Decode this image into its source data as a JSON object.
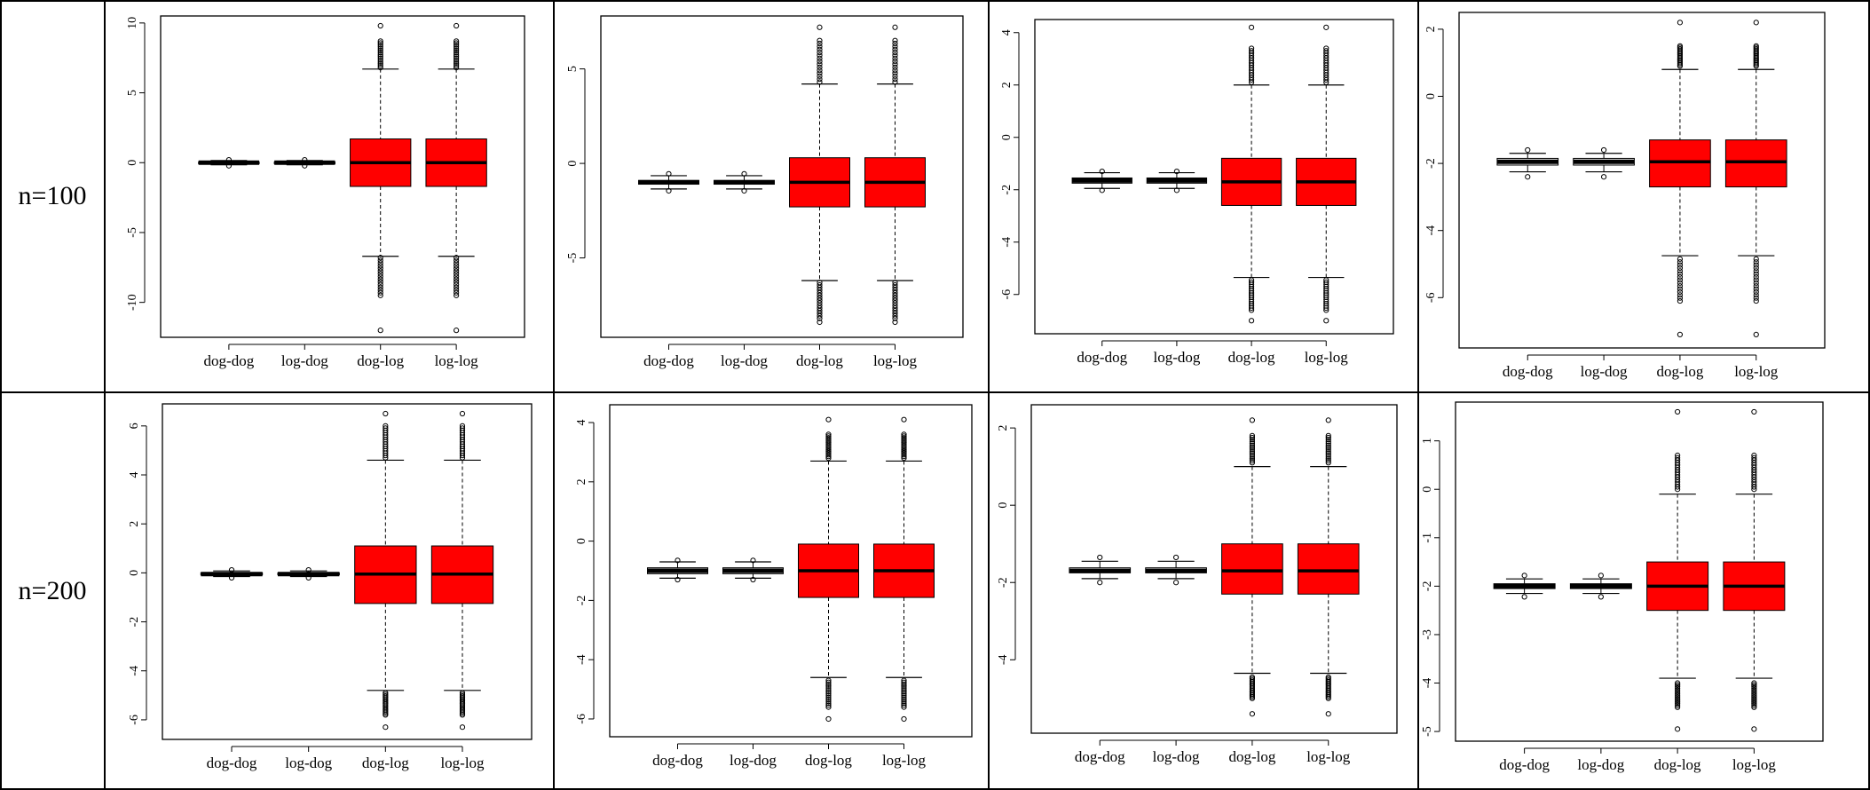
{
  "row_labels": [
    "n=100",
    "n=200"
  ],
  "colors": {
    "box_fill": "#ff0000",
    "frame": "#000000"
  },
  "chart_data": [
    {
      "type": "boxplot",
      "categories": [
        "dog-dog",
        "log-dog",
        "dog-log",
        "log-log"
      ],
      "ylim": [
        -12.5,
        10.5
      ],
      "yticks": [
        -10,
        -5,
        0,
        5,
        10
      ],
      "boxes": [
        {
          "wlo": -0.15,
          "q1": -0.05,
          "med": 0,
          "q3": 0.05,
          "whi": 0.15,
          "out": [
            -0.22,
            0.2
          ]
        },
        {
          "wlo": -0.15,
          "q1": -0.05,
          "med": 0,
          "q3": 0.05,
          "whi": 0.15,
          "out": [
            -0.22,
            0.2
          ]
        },
        {
          "wlo": -6.7,
          "q1": -1.7,
          "med": 0,
          "q3": 1.7,
          "whi": 6.7,
          "outlo": [
            -6.8,
            -9.5
          ],
          "outhi": [
            6.8,
            8.7
          ],
          "out": [
            -12,
            9.8
          ]
        },
        {
          "wlo": -6.7,
          "q1": -1.7,
          "med": 0,
          "q3": 1.7,
          "whi": 6.7,
          "outlo": [
            -6.8,
            -9.5
          ],
          "outhi": [
            6.8,
            8.7
          ],
          "out": [
            -12,
            9.8
          ]
        }
      ]
    },
    {
      "type": "boxplot",
      "categories": [
        "dog-dog",
        "log-dog",
        "dog-log",
        "log-log"
      ],
      "ylim": [
        -9.2,
        7.8
      ],
      "yticks": [
        -5,
        0,
        5
      ],
      "boxes": [
        {
          "wlo": -1.35,
          "q1": -1.1,
          "med": -1,
          "q3": -0.9,
          "whi": -0.65,
          "out": [
            -1.45,
            -0.55
          ]
        },
        {
          "wlo": -1.35,
          "q1": -1.1,
          "med": -1,
          "q3": -0.9,
          "whi": -0.65,
          "out": [
            -1.45,
            -0.55
          ]
        },
        {
          "wlo": -6.2,
          "q1": -2.3,
          "med": -1,
          "q3": 0.3,
          "whi": 4.2,
          "outlo": [
            -6.3,
            -8.2
          ],
          "outhi": [
            4.3,
            6.5
          ],
          "out": [
            -8.4,
            7.2
          ]
        },
        {
          "wlo": -6.2,
          "q1": -2.3,
          "med": -1,
          "q3": 0.3,
          "whi": 4.2,
          "outlo": [
            -6.3,
            -8.2
          ],
          "outhi": [
            4.3,
            6.5
          ],
          "out": [
            -8.4,
            7.2
          ]
        }
      ]
    },
    {
      "type": "boxplot",
      "categories": [
        "dog-dog",
        "log-dog",
        "dog-log",
        "log-log"
      ],
      "ylim": [
        -7.5,
        4.5
      ],
      "yticks": [
        -6,
        -4,
        -2,
        0,
        2,
        4
      ],
      "boxes": [
        {
          "wlo": -1.95,
          "q1": -1.75,
          "med": -1.65,
          "q3": -1.55,
          "whi": -1.35,
          "out": [
            -2.02,
            -1.3
          ]
        },
        {
          "wlo": -1.95,
          "q1": -1.75,
          "med": -1.65,
          "q3": -1.55,
          "whi": -1.35,
          "out": [
            -2.02,
            -1.3
          ]
        },
        {
          "wlo": -5.35,
          "q1": -2.6,
          "med": -1.7,
          "q3": -0.8,
          "whi": 2.0,
          "outlo": [
            -5.45,
            -6.6
          ],
          "outhi": [
            2.1,
            3.4
          ],
          "out": [
            -7.0,
            4.2
          ]
        },
        {
          "wlo": -5.35,
          "q1": -2.6,
          "med": -1.7,
          "q3": -0.8,
          "whi": 2.0,
          "outlo": [
            -5.45,
            -6.6
          ],
          "outhi": [
            2.1,
            3.4
          ],
          "out": [
            -7.0,
            4.2
          ]
        }
      ]
    },
    {
      "type": "boxplot",
      "categories": [
        "dog-dog",
        "log-dog",
        "dog-log",
        "log-log"
      ],
      "ylim": [
        -7.5,
        2.5
      ],
      "yticks": [
        -6,
        -4,
        -2,
        0,
        2
      ],
      "boxes": [
        {
          "wlo": -2.25,
          "q1": -2.05,
          "med": -1.95,
          "q3": -1.85,
          "whi": -1.7,
          "out": [
            -2.4,
            -1.6
          ]
        },
        {
          "wlo": -2.25,
          "q1": -2.05,
          "med": -1.95,
          "q3": -1.85,
          "whi": -1.7,
          "out": [
            -2.4,
            -1.6
          ]
        },
        {
          "wlo": -4.75,
          "q1": -2.7,
          "med": -1.95,
          "q3": -1.3,
          "whi": 0.8,
          "outlo": [
            -4.85,
            -6.1
          ],
          "outhi": [
            0.9,
            1.5
          ],
          "out": [
            -7.1,
            2.2
          ]
        },
        {
          "wlo": -4.75,
          "q1": -2.7,
          "med": -1.95,
          "q3": -1.3,
          "whi": 0.8,
          "outlo": [
            -4.85,
            -6.1
          ],
          "outhi": [
            0.9,
            1.5
          ],
          "out": [
            -7.1,
            2.2
          ]
        }
      ]
    },
    {
      "type": "boxplot",
      "categories": [
        "dog-dog",
        "log-dog",
        "dog-log",
        "log-log"
      ],
      "ylim": [
        -6.8,
        6.9
      ],
      "yticks": [
        -6,
        -4,
        -2,
        0,
        2,
        4,
        6
      ],
      "boxes": [
        {
          "wlo": -0.15,
          "q1": -0.08,
          "med": -0.05,
          "q3": 0,
          "whi": 0.08,
          "out": [
            -0.2,
            0.12
          ]
        },
        {
          "wlo": -0.15,
          "q1": -0.08,
          "med": -0.05,
          "q3": 0,
          "whi": 0.08,
          "out": [
            -0.2,
            0.12
          ]
        },
        {
          "wlo": -4.8,
          "q1": -1.25,
          "med": -0.05,
          "q3": 1.1,
          "whi": 4.6,
          "outlo": [
            -4.9,
            -5.8
          ],
          "outhi": [
            4.7,
            6.0
          ],
          "out": [
            -6.3,
            6.5
          ]
        },
        {
          "wlo": -4.8,
          "q1": -1.25,
          "med": -0.05,
          "q3": 1.1,
          "whi": 4.6,
          "outlo": [
            -4.9,
            -5.8
          ],
          "outhi": [
            4.7,
            6.0
          ],
          "out": [
            -6.3,
            6.5
          ]
        }
      ]
    },
    {
      "type": "boxplot",
      "categories": [
        "dog-dog",
        "log-dog",
        "dog-log",
        "log-log"
      ],
      "ylim": [
        -6.6,
        4.6
      ],
      "yticks": [
        -6,
        -4,
        -2,
        0,
        2,
        4
      ],
      "boxes": [
        {
          "wlo": -1.25,
          "q1": -1.1,
          "med": -1,
          "q3": -0.9,
          "whi": -0.7,
          "out": [
            -1.3,
            -0.65
          ]
        },
        {
          "wlo": -1.25,
          "q1": -1.1,
          "med": -1,
          "q3": -0.9,
          "whi": -0.7,
          "out": [
            -1.3,
            -0.65
          ]
        },
        {
          "wlo": -4.6,
          "q1": -1.9,
          "med": -1,
          "q3": -0.1,
          "whi": 2.7,
          "outlo": [
            -4.7,
            -5.6
          ],
          "outhi": [
            2.8,
            3.6
          ],
          "out": [
            -6.0,
            4.1
          ]
        },
        {
          "wlo": -4.6,
          "q1": -1.9,
          "med": -1,
          "q3": -0.1,
          "whi": 2.7,
          "outlo": [
            -4.7,
            -5.6
          ],
          "outhi": [
            2.8,
            3.6
          ],
          "out": [
            -6.0,
            4.1
          ]
        }
      ]
    },
    {
      "type": "boxplot",
      "categories": [
        "dog-dog",
        "log-dog",
        "dog-log",
        "log-log"
      ],
      "ylim": [
        -5.9,
        2.6
      ],
      "yticks": [
        -4,
        -2,
        0,
        2
      ],
      "boxes": [
        {
          "wlo": -1.9,
          "q1": -1.75,
          "med": -1.7,
          "q3": -1.62,
          "whi": -1.45,
          "out": [
            -2.0,
            -1.35
          ]
        },
        {
          "wlo": -1.9,
          "q1": -1.75,
          "med": -1.7,
          "q3": -1.62,
          "whi": -1.45,
          "out": [
            -2.0,
            -1.35
          ]
        },
        {
          "wlo": -4.35,
          "q1": -2.3,
          "med": -1.7,
          "q3": -1.0,
          "whi": 1.0,
          "outlo": [
            -4.45,
            -5.0
          ],
          "outhi": [
            1.1,
            1.8
          ],
          "out": [
            -5.4,
            2.2
          ]
        },
        {
          "wlo": -4.35,
          "q1": -2.3,
          "med": -1.7,
          "q3": -1.0,
          "whi": 1.0,
          "outlo": [
            -4.45,
            -5.0
          ],
          "outhi": [
            1.1,
            1.8
          ],
          "out": [
            -5.4,
            2.2
          ]
        }
      ]
    },
    {
      "type": "boxplot",
      "categories": [
        "dog-dog",
        "log-dog",
        "dog-log",
        "log-log"
      ],
      "ylim": [
        -5.2,
        1.8
      ],
      "yticks": [
        -5,
        -4,
        -3,
        -2,
        -1,
        0,
        1
      ],
      "boxes": [
        {
          "wlo": -2.15,
          "q1": -2.05,
          "med": -2,
          "q3": -1.95,
          "whi": -1.85,
          "out": [
            -2.22,
            -1.78
          ]
        },
        {
          "wlo": -2.15,
          "q1": -2.05,
          "med": -2,
          "q3": -1.95,
          "whi": -1.85,
          "out": [
            -2.22,
            -1.78
          ]
        },
        {
          "wlo": -3.9,
          "q1": -2.5,
          "med": -2,
          "q3": -1.5,
          "whi": -0.1,
          "outlo": [
            -4.0,
            -4.5
          ],
          "outhi": [
            0.0,
            0.7
          ],
          "out": [
            -4.95,
            1.6
          ]
        },
        {
          "wlo": -3.9,
          "q1": -2.5,
          "med": -2,
          "q3": -1.5,
          "whi": -0.1,
          "outlo": [
            -4.0,
            -4.5
          ],
          "outhi": [
            0.0,
            0.7
          ],
          "out": [
            -4.95,
            1.6
          ]
        }
      ]
    }
  ]
}
